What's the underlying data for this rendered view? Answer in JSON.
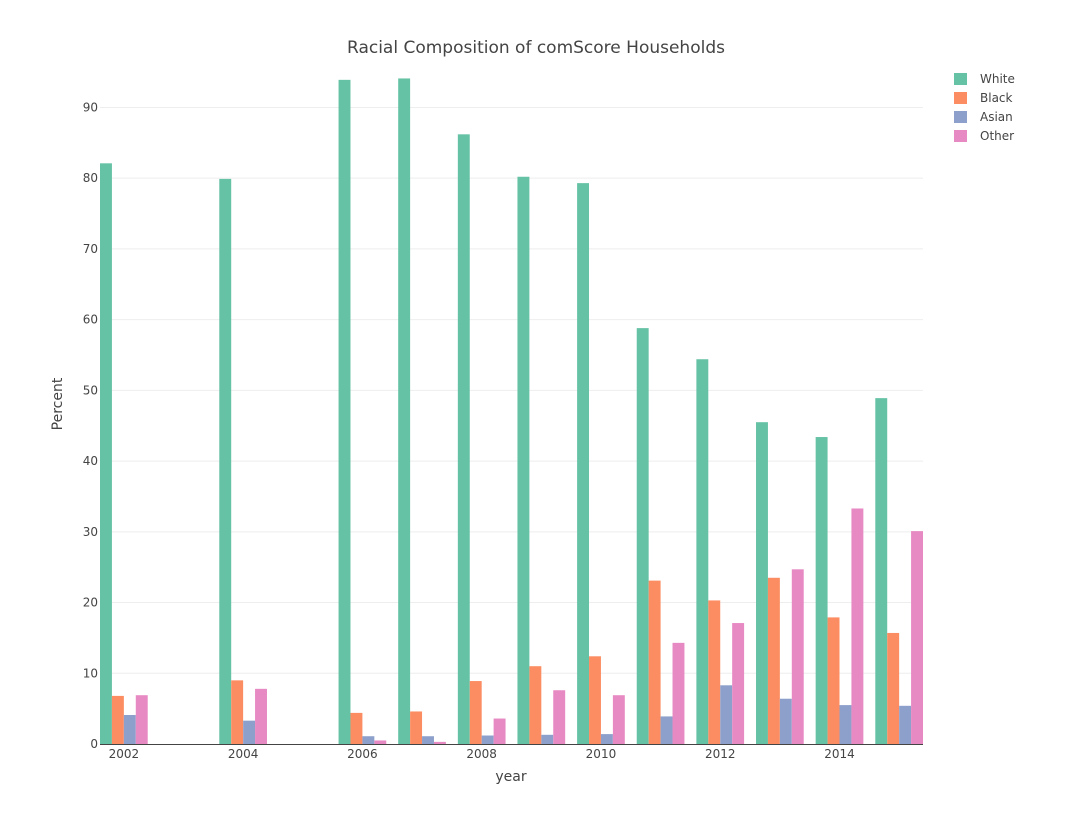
{
  "chart_data": {
    "type": "bar",
    "title": "Racial Composition of comScore Households",
    "xlabel": "year",
    "ylabel": "Percent",
    "x": [
      2002,
      2004,
      2006,
      2007,
      2008,
      2009,
      2010,
      2011,
      2012,
      2013,
      2014,
      2015
    ],
    "x_tick_labels": [
      "2002",
      "2004",
      "2006",
      "2008",
      "2010",
      "2012",
      "2014"
    ],
    "x_tick_values": [
      2002,
      2004,
      2006,
      2008,
      2010,
      2012,
      2014
    ],
    "xlim": [
      2001.6,
      2015.4
    ],
    "ylim": [
      0,
      96
    ],
    "y_ticks": [
      0,
      10,
      20,
      30,
      40,
      50,
      60,
      70,
      80,
      90
    ],
    "grid": true,
    "legend_position": "top-right",
    "series": [
      {
        "name": "White",
        "color": "#66c2a5",
        "values": [
          82.1,
          79.9,
          93.9,
          94.1,
          86.2,
          80.2,
          79.3,
          58.8,
          54.4,
          45.5,
          43.4,
          48.9
        ]
      },
      {
        "name": "Black",
        "color": "#fc8d62",
        "values": [
          6.8,
          9.0,
          4.4,
          4.6,
          8.9,
          11.0,
          12.4,
          23.1,
          20.3,
          23.5,
          17.9,
          15.7
        ]
      },
      {
        "name": "Asian",
        "color": "#8da0cb",
        "values": [
          4.1,
          3.3,
          1.1,
          1.1,
          1.2,
          1.3,
          1.4,
          3.9,
          8.3,
          6.4,
          5.5,
          5.4
        ]
      },
      {
        "name": "Other",
        "color": "#e78ac3",
        "values": [
          6.9,
          7.8,
          0.5,
          0.3,
          3.6,
          7.6,
          6.9,
          14.3,
          17.1,
          24.7,
          33.3,
          30.1
        ]
      }
    ]
  }
}
